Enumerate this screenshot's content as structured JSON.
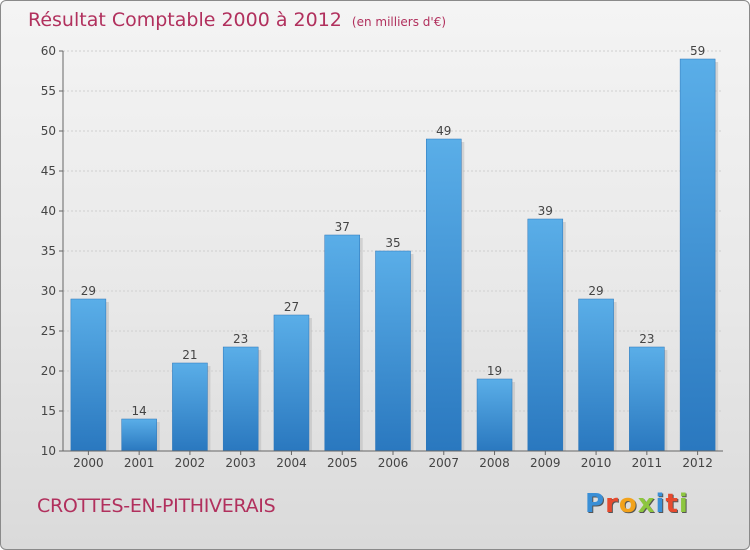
{
  "header": {
    "title": "Résultat Comptable 2000 à 2012",
    "subtitle": "(en milliers d'€)"
  },
  "footer": {
    "commune": "CROTTES-EN-PITHIVERAIS",
    "logo_letters": [
      "P",
      "r",
      "o",
      "x",
      "i",
      "t",
      "i"
    ],
    "logo_colors": [
      "#3a8fd6",
      "#e64a2e",
      "#f2a21b",
      "#8dc63f",
      "#3a8fd6",
      "#e64a2e",
      "#8dc63f"
    ]
  },
  "chart_data": {
    "type": "bar",
    "title": "Résultat Comptable 2000 à 2012",
    "subtitle": "(en milliers d'€)",
    "categories": [
      "2000",
      "2001",
      "2002",
      "2003",
      "2004",
      "2005",
      "2006",
      "2007",
      "2008",
      "2009",
      "2010",
      "2011",
      "2012"
    ],
    "values": [
      29,
      14,
      21,
      23,
      27,
      37,
      35,
      49,
      19,
      39,
      29,
      23,
      59
    ],
    "ylim": [
      10,
      60
    ],
    "yticks": [
      10,
      15,
      20,
      25,
      30,
      35,
      40,
      45,
      50,
      55,
      60
    ],
    "grid": true,
    "bar_color": "#3d97dc",
    "label_color": "#444444"
  }
}
